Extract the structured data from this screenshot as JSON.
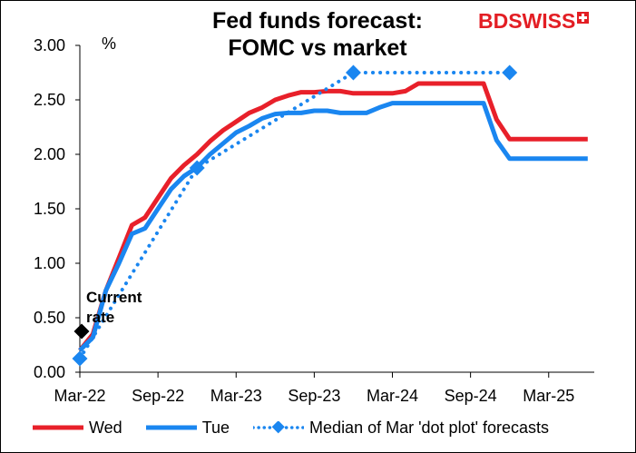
{
  "title_line1": "Fed funds forecast:",
  "title_line2": "FOMC vs market",
  "brand": "BDSWISS",
  "colors": {
    "wed": "#e8202a",
    "tue": "#1a86f0",
    "dot": "#1a86f0",
    "current": "#000000"
  },
  "chart_data": {
    "type": "line",
    "ylabel": "%",
    "ylim": [
      0,
      3.0
    ],
    "yticks": [
      "0.00",
      "0.50",
      "1.00",
      "1.50",
      "2.00",
      "2.50",
      "3.00"
    ],
    "xticks": [
      "Mar-22",
      "Sep-22",
      "Mar-23",
      "Sep-23",
      "Mar-24",
      "Sep-24",
      "Mar-25"
    ],
    "xrange_months": [
      "2022-03",
      "2025-06"
    ],
    "grid": false,
    "legend_position": "bottom",
    "series": [
      {
        "name": "Wed",
        "x": [
          "2022-03",
          "2022-04",
          "2022-05",
          "2022-06",
          "2022-07",
          "2022-08",
          "2022-09",
          "2022-10",
          "2022-11",
          "2022-12",
          "2023-01",
          "2023-02",
          "2023-03",
          "2023-04",
          "2023-05",
          "2023-06",
          "2023-07",
          "2023-08",
          "2023-09",
          "2023-10",
          "2023-11",
          "2023-12",
          "2024-01",
          "2024-02",
          "2024-03",
          "2024-04",
          "2024-05",
          "2024-06",
          "2024-07",
          "2024-08",
          "2024-09",
          "2024-10",
          "2024-11",
          "2024-12",
          "2025-01",
          "2025-02",
          "2025-03",
          "2025-04",
          "2025-05",
          "2025-06"
        ],
        "values": [
          0.2,
          0.35,
          0.75,
          1.05,
          1.35,
          1.42,
          1.6,
          1.78,
          1.9,
          2.0,
          2.12,
          2.22,
          2.3,
          2.38,
          2.43,
          2.5,
          2.54,
          2.57,
          2.57,
          2.58,
          2.58,
          2.56,
          2.56,
          2.56,
          2.56,
          2.58,
          2.65,
          2.65,
          2.65,
          2.65,
          2.65,
          2.65,
          2.32,
          2.14,
          2.14,
          2.14,
          2.14,
          2.14,
          2.14,
          2.14
        ]
      },
      {
        "name": "Tue",
        "x": [
          "2022-03",
          "2022-04",
          "2022-05",
          "2022-06",
          "2022-07",
          "2022-08",
          "2022-09",
          "2022-10",
          "2022-11",
          "2022-12",
          "2023-01",
          "2023-02",
          "2023-03",
          "2023-04",
          "2023-05",
          "2023-06",
          "2023-07",
          "2023-08",
          "2023-09",
          "2023-10",
          "2023-11",
          "2023-12",
          "2024-01",
          "2024-02",
          "2024-03",
          "2024-04",
          "2024-05",
          "2024-06",
          "2024-07",
          "2024-08",
          "2024-09",
          "2024-10",
          "2024-11",
          "2024-12",
          "2025-01",
          "2025-02",
          "2025-03",
          "2025-04",
          "2025-05",
          "2025-06"
        ],
        "values": [
          0.2,
          0.32,
          0.75,
          1.0,
          1.27,
          1.32,
          1.5,
          1.68,
          1.8,
          1.88,
          2.0,
          2.1,
          2.2,
          2.26,
          2.33,
          2.37,
          2.38,
          2.38,
          2.4,
          2.4,
          2.38,
          2.38,
          2.38,
          2.43,
          2.47,
          2.47,
          2.47,
          2.47,
          2.47,
          2.47,
          2.47,
          2.47,
          2.13,
          1.96,
          1.96,
          1.96,
          1.96,
          1.96,
          1.96,
          1.96
        ]
      },
      {
        "name": "Median of Mar 'dot plot' forecasts",
        "style": "dotted-with-diamonds",
        "x": [
          "2022-03",
          "2022-12",
          "2023-12",
          "2024-12"
        ],
        "values": [
          0.125,
          1.875,
          2.75,
          2.75
        ]
      }
    ],
    "annotations": [
      {
        "text_line1": "Current",
        "text_line2": "rate",
        "x": "2022-03",
        "y": 0.375,
        "marker": "diamond"
      }
    ]
  }
}
